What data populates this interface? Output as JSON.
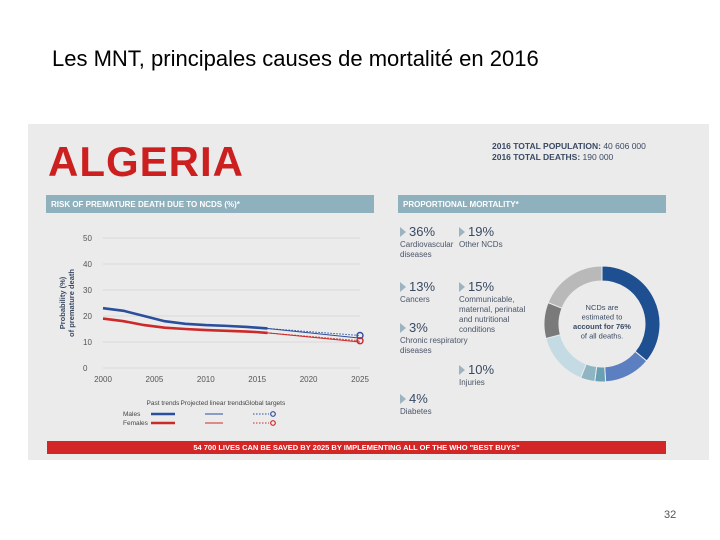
{
  "slide": {
    "title": "Les MNT, principales causes de mortalité en 2016",
    "page_number": "32"
  },
  "infographic": {
    "country": "ALGERIA",
    "total_population_label": "2016 TOTAL POPULATION:",
    "total_population_value": "40 606 000",
    "total_deaths_label": "2016 TOTAL DEATHS:",
    "total_deaths_value": "190 000",
    "risk_header": "RISK OF PREMATURE DEATH DUE TO NCDS (%)*",
    "proportional_header": "PROPORTIONAL MORTALITY*",
    "banner": "54 700 LIVES CAN BE SAVED BY 2025 BY IMPLEMENTING ALL OF THE WHO \"BEST BUYS\""
  },
  "proportional_mortality": [
    {
      "pct": "36%",
      "label": "Cardiovascular diseases"
    },
    {
      "pct": "19%",
      "label": "Other NCDs"
    },
    {
      "pct": "13%",
      "label": "Cancers"
    },
    {
      "pct": "15%",
      "label": "Communicable, maternal, perinatal and nutritional conditions"
    },
    {
      "pct": "3%",
      "label": "Chronic respiratory diseases"
    },
    {
      "pct": "10%",
      "label": "Injuries"
    },
    {
      "pct": "4%",
      "label": "Diabetes"
    }
  ],
  "donut": {
    "center_text": [
      "NCDs are",
      "estimated to",
      "account for 76%",
      "of all deaths."
    ],
    "slices": [
      {
        "name": "Cardiovascular diseases",
        "value": 36,
        "color": "#1d4f91"
      },
      {
        "name": "Cancers",
        "value": 13,
        "color": "#5b7fc0"
      },
      {
        "name": "Chronic respiratory diseases",
        "value": 3,
        "color": "#6aa0b4"
      },
      {
        "name": "Diabetes",
        "value": 4,
        "color": "#8fb4c2"
      },
      {
        "name": "Communicable, maternal, perinatal and nutritional conditions",
        "value": 15,
        "color": "#c5dbe3"
      },
      {
        "name": "Injuries",
        "value": 10,
        "color": "#7a7a7a"
      },
      {
        "name": "Other NCDs",
        "value": 19,
        "color": "#b9b9b9"
      }
    ]
  },
  "chart_data": {
    "type": "line",
    "ylabel": "Probability (%) of premature death",
    "xlabel": "",
    "ylim": [
      0,
      50
    ],
    "yticks": [
      0,
      10,
      20,
      30,
      40,
      50
    ],
    "xlim": [
      2000,
      2025
    ],
    "xticks": [
      2000,
      2005,
      2010,
      2015,
      2020,
      2025
    ],
    "grid": true,
    "legend": {
      "columns": [
        "Past trends",
        "Projected linear trends",
        "Global targets"
      ],
      "rows": [
        "Males",
        "Females"
      ]
    },
    "series": [
      {
        "name": "Males",
        "kind": "past",
        "color": "#2b4f9c",
        "x": [
          2000,
          2002,
          2004,
          2006,
          2008,
          2010,
          2012,
          2014,
          2015,
          2016
        ],
        "y": [
          23,
          22,
          20,
          18,
          17,
          16.5,
          16.2,
          15.8,
          15.5,
          15.2
        ]
      },
      {
        "name": "Females",
        "kind": "past",
        "color": "#cc2929",
        "x": [
          2000,
          2002,
          2004,
          2006,
          2008,
          2010,
          2012,
          2014,
          2015,
          2016
        ],
        "y": [
          19,
          18,
          16.5,
          15.5,
          15,
          14.6,
          14.3,
          14,
          13.8,
          13.5
        ]
      },
      {
        "name": "Males",
        "kind": "projected",
        "color": "#2b4f9c",
        "x": [
          2016,
          2025
        ],
        "y": [
          15.2,
          11.5
        ]
      },
      {
        "name": "Females",
        "kind": "projected",
        "color": "#cc2929",
        "x": [
          2016,
          2025
        ],
        "y": [
          13.5,
          10
        ]
      },
      {
        "name": "Males",
        "kind": "target",
        "color": "#2b4f9c",
        "x": [
          2016,
          2025
        ],
        "y": [
          15.2,
          12.5
        ]
      },
      {
        "name": "Females",
        "kind": "target",
        "color": "#cc2929",
        "x": [
          2016,
          2025
        ],
        "y": [
          13.5,
          10.5
        ]
      }
    ]
  }
}
